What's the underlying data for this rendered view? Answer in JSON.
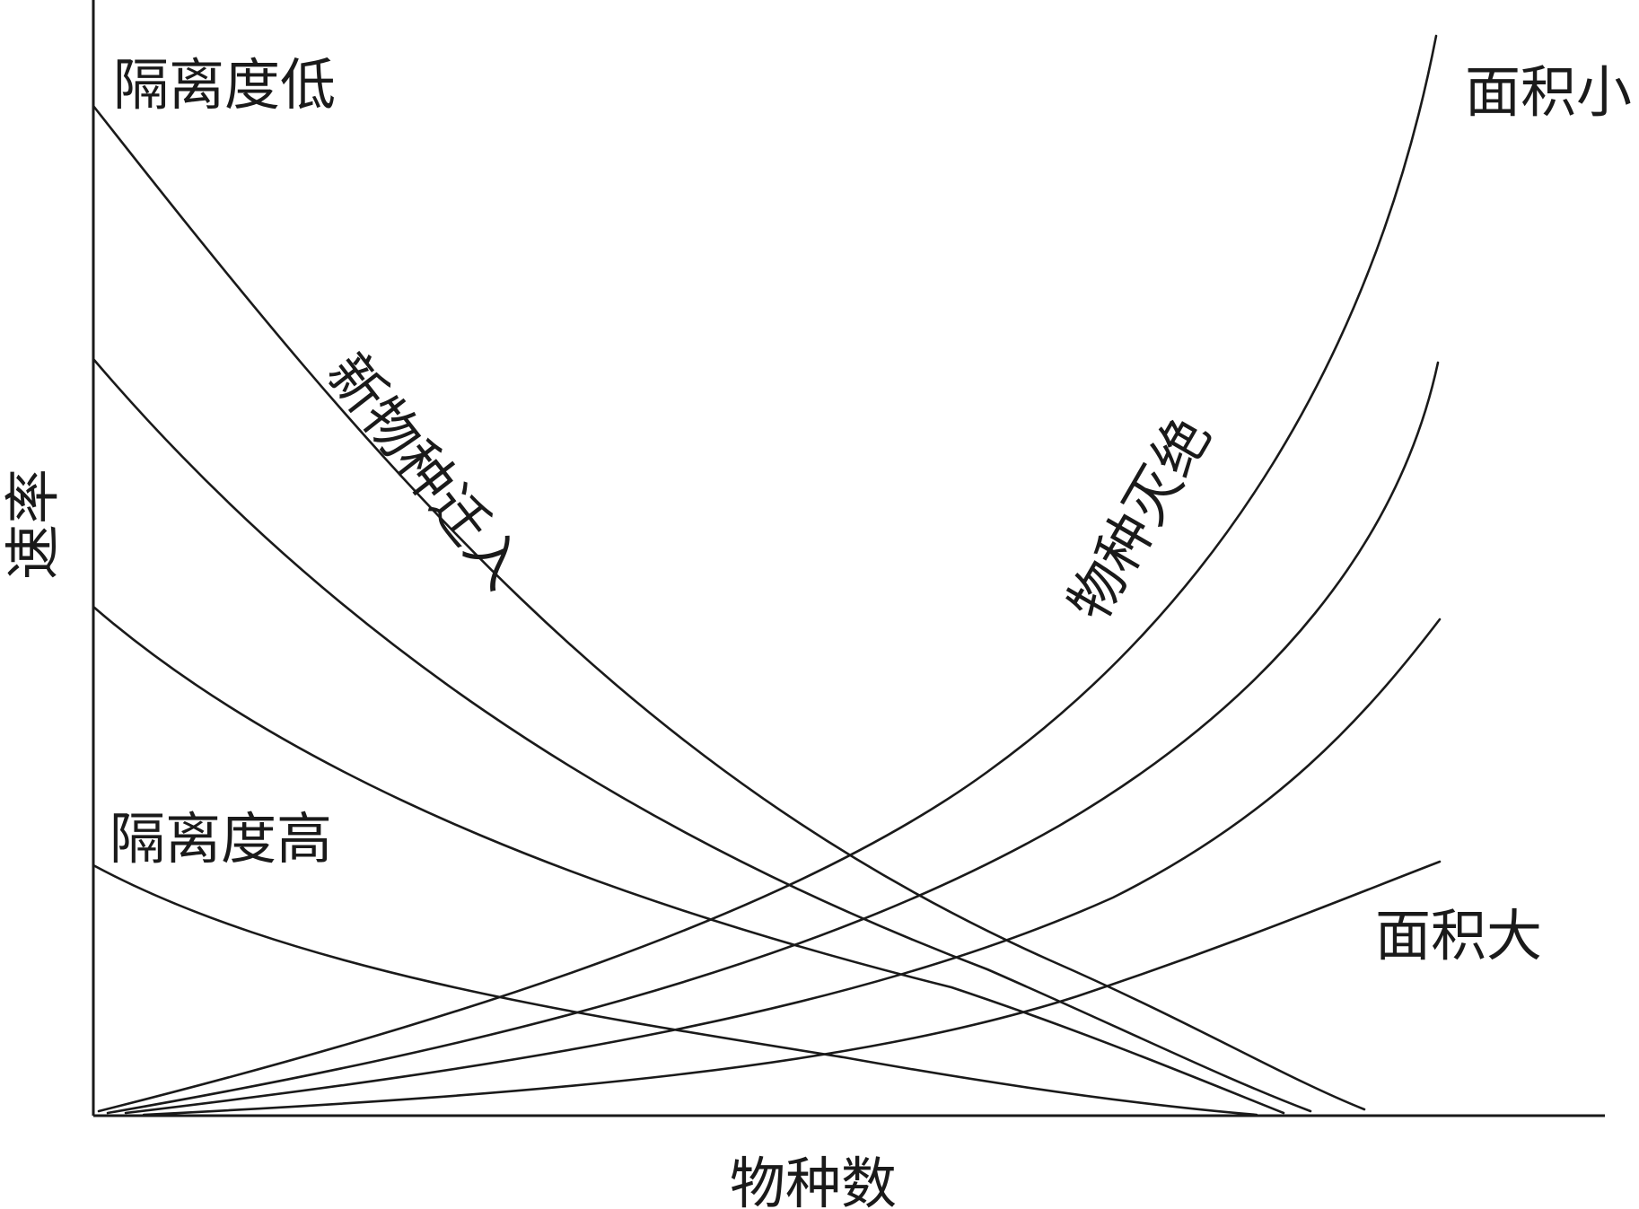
{
  "chart_data": {
    "type": "line",
    "xlabel": "物种数",
    "ylabel": "速率",
    "immigration": {
      "label": "新物种迁入",
      "high_label": "隔离度低",
      "low_label": "隔离度高",
      "series_count": 4
    },
    "extinction": {
      "label": "物种灭绝",
      "high_label": "面积小",
      "low_label": "面积大",
      "series_count": 4
    }
  }
}
